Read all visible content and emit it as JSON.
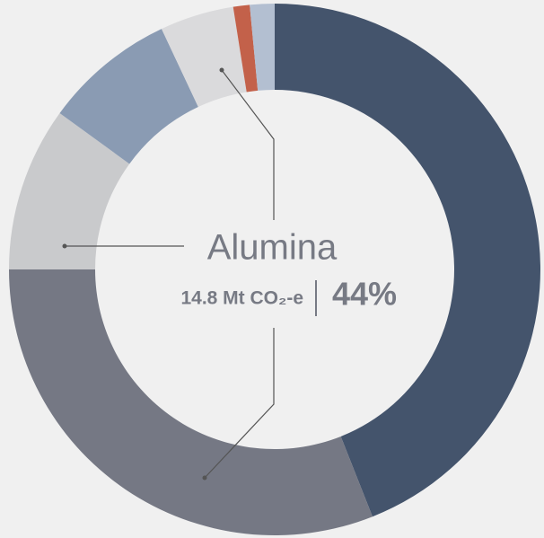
{
  "chart_data": {
    "type": "donut",
    "values": [
      44,
      31,
      10,
      8,
      4.5,
      1,
      1.5
    ],
    "colors": [
      "#44546c",
      "#757884",
      "#c9cacc",
      "#8a9bb3",
      "#dadadc",
      "#c3614a",
      "#b3bfd1"
    ],
    "center": {
      "label": "Alumina",
      "amount": "14.8 Mt CO₂-e",
      "share": "44%"
    }
  }
}
